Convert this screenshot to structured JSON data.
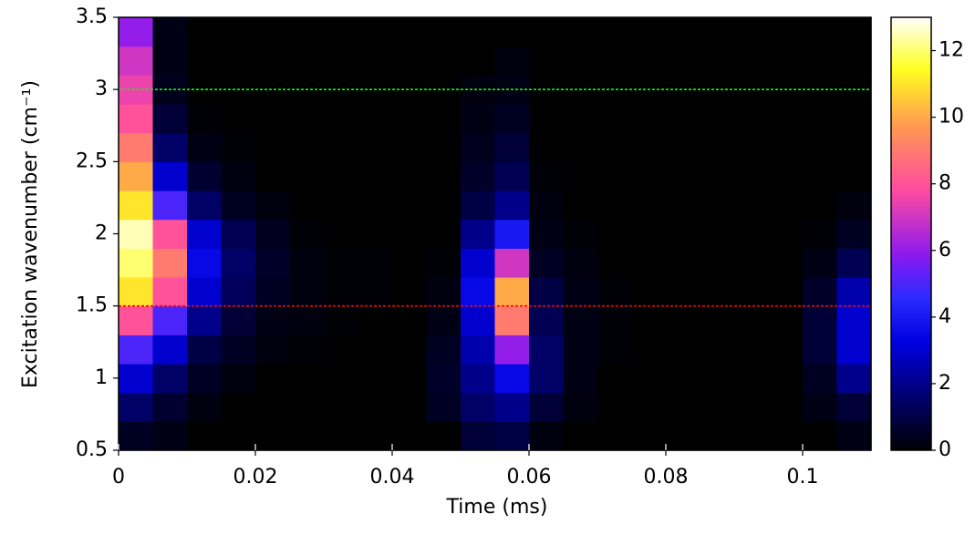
{
  "chart_data": {
    "type": "heatmap",
    "xlabel": "Time (ms)",
    "ylabel": "Excitation wavenumber (cm⁻¹)",
    "xlim": [
      0,
      0.11
    ],
    "ylim": [
      0.5,
      3.5
    ],
    "xticks": [
      0,
      0.02,
      0.04,
      0.06,
      0.08,
      0.1
    ],
    "yticks": [
      0.5,
      1,
      1.5,
      2,
      2.5,
      3,
      3.5
    ],
    "x": [
      0.0025,
      0.0075,
      0.0125,
      0.0175,
      0.0225,
      0.0275,
      0.0325,
      0.0375,
      0.0425,
      0.0475,
      0.0525,
      0.0575,
      0.0625,
      0.0675,
      0.0725,
      0.0775,
      0.0825,
      0.0875,
      0.0925,
      0.0975,
      0.1025,
      0.1075
    ],
    "y": [
      0.6,
      0.8,
      1.0,
      1.2,
      1.4,
      1.6,
      1.8,
      2.0,
      2.2,
      2.4,
      2.6,
      2.8,
      3.0,
      3.2,
      3.4
    ],
    "values": [
      [
        0.5,
        0.3,
        0,
        0,
        0,
        0,
        0,
        0,
        0,
        0,
        0.8,
        1,
        0.2,
        0,
        0,
        0,
        0,
        0,
        0,
        0,
        0,
        0.3
      ],
      [
        1.5,
        0.7,
        0.2,
        0,
        0,
        0,
        0,
        0,
        0,
        0.5,
        1.5,
        2,
        0.8,
        0.2,
        0,
        0,
        0,
        0,
        0,
        0,
        0.3,
        0.8
      ],
      [
        3,
        1.5,
        0.5,
        0.2,
        0,
        0,
        0,
        0,
        0,
        0.6,
        2,
        3.5,
        1.5,
        0.3,
        0,
        0,
        0,
        0,
        0,
        0,
        0.5,
        2
      ],
      [
        5,
        3,
        1,
        0.5,
        0.2,
        0.1,
        0,
        0,
        0,
        0.5,
        2.5,
        6,
        1.5,
        0.3,
        0.1,
        0,
        0,
        0,
        0,
        0,
        0.8,
        3
      ],
      [
        8,
        5,
        2,
        0.8,
        0.3,
        0.2,
        0.1,
        0,
        0,
        0.3,
        3,
        9,
        1.2,
        0.3,
        0.1,
        0,
        0,
        0,
        0,
        0,
        0.8,
        3
      ],
      [
        11,
        8,
        3,
        1.3,
        0.5,
        0.2,
        0.1,
        0.1,
        0,
        0.2,
        3.5,
        10,
        1,
        0.3,
        0.1,
        0,
        0,
        0,
        0,
        0,
        0.6,
        2.5
      ],
      [
        12,
        9,
        3.5,
        1.5,
        0.6,
        0.2,
        0.1,
        0.1,
        0,
        0.1,
        3,
        7,
        0.5,
        0.2,
        0,
        0,
        0,
        0,
        0,
        0,
        0.3,
        1.2
      ],
      [
        12.5,
        8,
        3,
        1.2,
        0.4,
        0.1,
        0,
        0,
        0,
        0,
        2,
        4,
        0.3,
        0.1,
        0,
        0,
        0,
        0,
        0,
        0,
        0.1,
        0.5
      ],
      [
        11,
        5,
        1.5,
        0.5,
        0.2,
        0,
        0,
        0,
        0,
        0,
        1,
        2,
        0.2,
        0,
        0,
        0,
        0,
        0,
        0,
        0,
        0,
        0.2
      ],
      [
        10,
        3,
        0.7,
        0.2,
        0,
        0,
        0,
        0,
        0,
        0,
        0.6,
        1.2,
        0.1,
        0,
        0,
        0,
        0,
        0,
        0,
        0,
        0,
        0
      ],
      [
        9,
        1.5,
        0.3,
        0.1,
        0,
        0,
        0,
        0,
        0,
        0,
        0.4,
        0.8,
        0,
        0,
        0,
        0,
        0,
        0,
        0,
        0,
        0,
        0
      ],
      [
        8,
        0.8,
        0.1,
        0,
        0,
        0,
        0,
        0,
        0,
        0,
        0.3,
        0.5,
        0,
        0,
        0,
        0,
        0,
        0,
        0,
        0,
        0,
        0
      ],
      [
        7.5,
        0.4,
        0,
        0,
        0,
        0,
        0,
        0,
        0,
        0,
        0.2,
        0.3,
        0,
        0,
        0,
        0,
        0,
        0,
        0,
        0,
        0,
        0
      ],
      [
        7,
        0.3,
        0,
        0,
        0,
        0,
        0,
        0,
        0,
        0,
        0,
        0.2,
        0,
        0,
        0,
        0,
        0,
        0,
        0,
        0,
        0,
        0
      ],
      [
        6,
        0.3,
        0,
        0,
        0,
        0,
        0,
        0,
        0,
        0,
        0,
        0,
        0,
        0,
        0,
        0,
        0,
        0,
        0,
        0,
        0,
        0
      ]
    ],
    "clim": [
      0,
      13
    ],
    "cticks": [
      0,
      2,
      4,
      6,
      8,
      10,
      12
    ],
    "colormap": [
      [
        0,
        "#000000"
      ],
      [
        0.25,
        "#0000e0"
      ],
      [
        0.35,
        "#2a2aff"
      ],
      [
        0.45,
        "#8a1af0"
      ],
      [
        0.6,
        "#ff4aa0"
      ],
      [
        0.75,
        "#ff9a50"
      ],
      [
        0.88,
        "#ffff20"
      ],
      [
        1,
        "#ffffff"
      ]
    ],
    "hlines": [
      {
        "value": 3,
        "color": "#00ff00"
      },
      {
        "value": 1.5,
        "color": "#ff0000"
      }
    ]
  }
}
